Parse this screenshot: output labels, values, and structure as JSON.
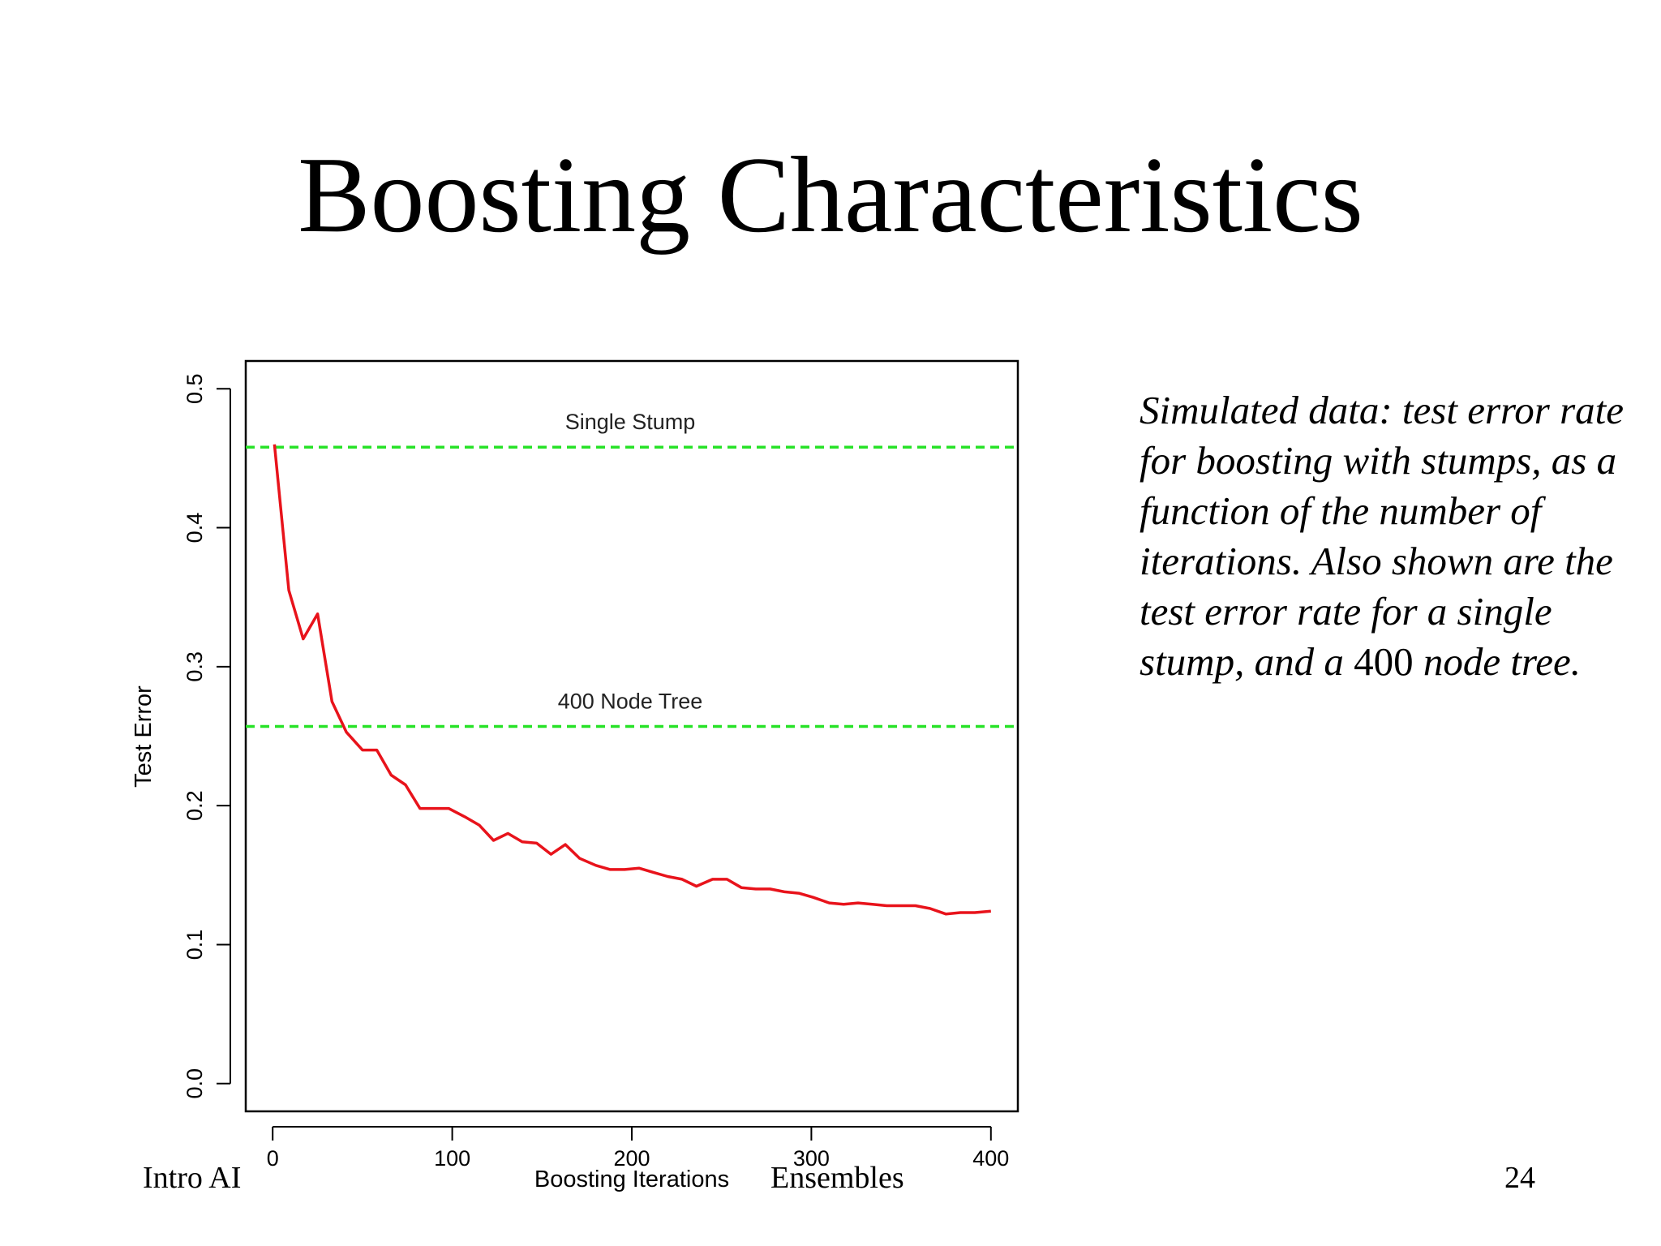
{
  "slide": {
    "title": "Boosting Characteristics",
    "caption_parts": [
      "Simulated data: test error rate for boosting with stumps,  as a function of the number of iterations. Also shown are the test error rate for a single stump, and a ",
      "400",
      " node tree."
    ],
    "footer_left": "Intro AI",
    "footer_center": "Ensembles",
    "page_number": "24"
  },
  "chart_data": {
    "type": "line",
    "title": "",
    "xlabel": "Boosting Iterations",
    "ylabel": "Test Error",
    "xlim": [
      -15,
      415
    ],
    "ylim": [
      -0.02,
      0.52
    ],
    "x_ticks": [
      0,
      100,
      200,
      300,
      400
    ],
    "x_tick_labels": [
      "0",
      "100",
      "200",
      "300",
      "400"
    ],
    "y_ticks": [
      0.0,
      0.1,
      0.2,
      0.3,
      0.4,
      0.5
    ],
    "y_tick_labels": [
      "0.0",
      "0.1",
      "0.2",
      "0.3",
      "0.4",
      "0.5"
    ],
    "grid": false,
    "series": [
      {
        "color": "#e8131b",
        "x": [
          1,
          9,
          17,
          25,
          33,
          41,
          50,
          58,
          66,
          74,
          82,
          90,
          98,
          107,
          115,
          123,
          131,
          139,
          147,
          155,
          163,
          171,
          180,
          188,
          196,
          204,
          212,
          220,
          228,
          236,
          245,
          253,
          261,
          269,
          277,
          285,
          293,
          301,
          310,
          318,
          326,
          334,
          342,
          350,
          358,
          366,
          375,
          383,
          391,
          400
        ],
        "y": [
          0.46,
          0.355,
          0.32,
          0.338,
          0.275,
          0.253,
          0.24,
          0.24,
          0.222,
          0.215,
          0.198,
          0.198,
          0.198,
          0.192,
          0.186,
          0.175,
          0.18,
          0.174,
          0.173,
          0.165,
          0.172,
          0.162,
          0.157,
          0.154,
          0.154,
          0.155,
          0.152,
          0.149,
          0.147,
          0.142,
          0.147,
          0.147,
          0.141,
          0.14,
          0.14,
          0.138,
          0.137,
          0.134,
          0.13,
          0.129,
          0.13,
          0.129,
          0.128,
          0.128,
          0.128,
          0.126,
          0.122,
          0.123,
          0.123,
          0.124
        ]
      }
    ],
    "reference_lines": [
      {
        "y": 0.458,
        "label": "Single Stump",
        "color": "#27e227"
      },
      {
        "y": 0.257,
        "label": "400 Node Tree",
        "color": "#27e227"
      }
    ]
  }
}
